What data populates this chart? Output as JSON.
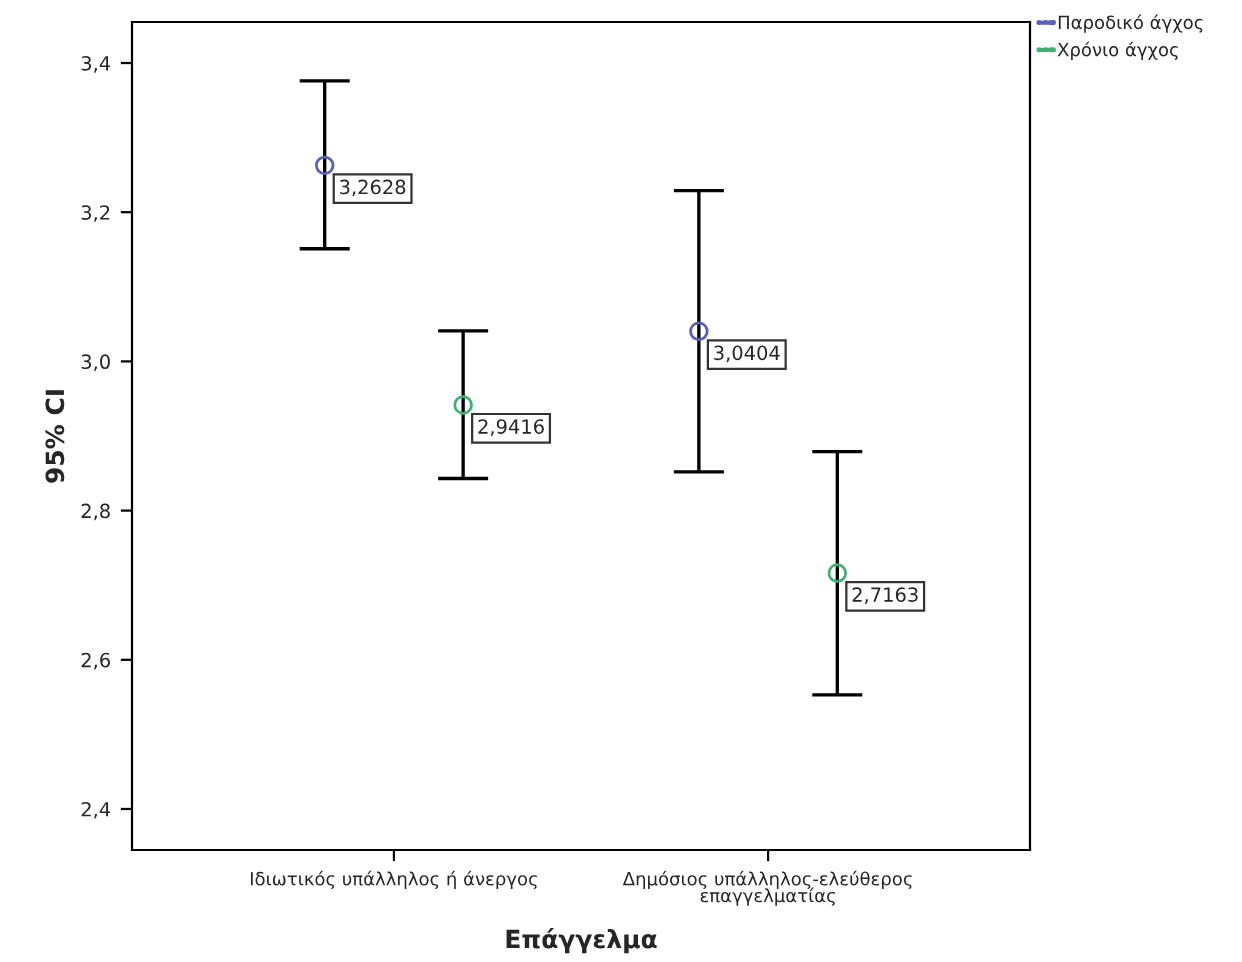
{
  "chart_data": {
    "type": "scatter",
    "xlabel": "Επάγγελμα",
    "ylabel": "95% CI",
    "categories": [
      "Ιδιωτικός υπάλληλος ή άνεργος",
      "Δημόσιος υπάλληλος-ελεύθερος\nεπαγγελματίας"
    ],
    "series": [
      {
        "name": "Παροδικό άγχος",
        "color": "#5b5fb8",
        "values": [
          3.2628,
          3.0404
        ],
        "errors": [
          [
            3.151,
            3.376
          ],
          [
            2.852,
            3.229
          ]
        ],
        "value_labels": [
          "3,2628",
          "3,0404"
        ]
      },
      {
        "name": "Χρόνιο άγχος",
        "color": "#3cb371",
        "values": [
          2.9416,
          2.7163
        ],
        "errors": [
          [
            2.843,
            3.041
          ],
          [
            2.553,
            2.879
          ]
        ],
        "value_labels": [
          "2,9416",
          "2,7163"
        ]
      }
    ],
    "ylim": [
      2.345,
      3.455
    ],
    "yticks": [
      {
        "value": 2.4,
        "label": "2,4"
      },
      {
        "value": 2.6,
        "label": "2,6"
      },
      {
        "value": 2.8,
        "label": "2,8"
      },
      {
        "value": 3.0,
        "label": "3,0"
      },
      {
        "value": 3.2,
        "label": "3,2"
      },
      {
        "value": 3.4,
        "label": "3,4"
      }
    ],
    "marker": "circle",
    "grid": false,
    "legend": "top right"
  }
}
